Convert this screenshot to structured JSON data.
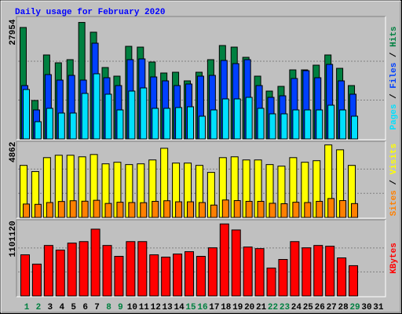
{
  "title": "Daily usage for February 2020",
  "categories": [
    "1",
    "2",
    "3",
    "4",
    "5",
    "6",
    "7",
    "8",
    "9",
    "10",
    "11",
    "12",
    "13",
    "14",
    "15",
    "16",
    "17",
    "18",
    "19",
    "20",
    "21",
    "22",
    "23",
    "24",
    "25",
    "26",
    "27",
    "28",
    "29",
    "30",
    "31"
  ],
  "category_colors": [
    "#008040",
    "#008040",
    "#000000",
    "#000000",
    "#000000",
    "#000000",
    "#000000",
    "#008040",
    "#008040",
    "#000000",
    "#000000",
    "#000000",
    "#000000",
    "#000000",
    "#008040",
    "#008040",
    "#000000",
    "#000000",
    "#000000",
    "#000000",
    "#000000",
    "#008040",
    "#008040",
    "#000000",
    "#000000",
    "#000000",
    "#000000",
    "#000000",
    "#008040",
    "#000000",
    "#000000"
  ],
  "chart_data": [
    {
      "type": "bar",
      "ylim": [
        0,
        29000
      ],
      "yticks": [
        27954
      ],
      "series": [
        {
          "name": "Hits",
          "color": "#008040",
          "values": [
            26740,
            9227,
            20150,
            18265,
            19020,
            27954,
            25610,
            17135,
            15065,
            22220,
            22030,
            18455,
            15820,
            16005,
            13935,
            16005,
            19020,
            22410,
            22030,
            19585,
            15065,
            11485,
            12615,
            16570,
            16570,
            17700,
            20150,
            16945,
            12805,
            null,
            null
          ]
        },
        {
          "name": "Files",
          "color": "#0040ff",
          "values": [
            12805,
            6965,
            15440,
            14120,
            15250,
            14120,
            22970,
            14685,
            12805,
            19020,
            19205,
            14875,
            13935,
            12805,
            13180,
            15065,
            15250,
            18830,
            18075,
            19020,
            12805,
            9980,
            10355,
            14500,
            16380,
            14685,
            17890,
            13935,
            10735,
            null,
            null
          ]
        },
        {
          "name": "Pages",
          "color": "#00e0ff",
          "values": [
            11860,
            4140,
            7345,
            6215,
            6215,
            10920,
            15630,
            10735,
            6965,
            11485,
            12240,
            7345,
            7345,
            7530,
            7720,
            5460,
            6965,
            9605,
            9605,
            9980,
            7345,
            6025,
            6025,
            6965,
            6965,
            6965,
            8095,
            6965,
            5460,
            null,
            null
          ]
        }
      ]
    },
    {
      "type": "bar",
      "ylim": [
        0,
        5000
      ],
      "yticks": [
        4862
      ],
      "series": [
        {
          "name": "Visits",
          "color": "#ffff00",
          "values": [
            3490,
            3075,
            4010,
            4170,
            4170,
            4065,
            4220,
            3595,
            3700,
            3545,
            3595,
            3855,
            4637,
            3645,
            3645,
            3490,
            3020,
            4010,
            4065,
            3855,
            3855,
            3545,
            3440,
            4010,
            3700,
            3805,
            4862,
            4535,
            3490,
            null,
            null
          ]
        },
        {
          "name": "Sites",
          "color": "#ff8000",
          "values": [
            900,
            880,
            1000,
            1070,
            1120,
            1090,
            1150,
            940,
            1020,
            1000,
            990,
            1080,
            1120,
            1050,
            1050,
            1000,
            830,
            1170,
            1130,
            1080,
            1080,
            950,
            920,
            1020,
            1000,
            1080,
            1270,
            1130,
            930,
            null,
            null
          ]
        }
      ]
    },
    {
      "type": "bar",
      "ylim": [
        0,
        1140000
      ],
      "yticks": [
        1101120
      ],
      "series": [
        {
          "name": "KBytes",
          "color": "#ff0000",
          "values": [
            629000,
            487000,
            772000,
            701000,
            808000,
            831000,
            1021000,
            772000,
            606000,
            831000,
            831000,
            629000,
            594000,
            641000,
            677000,
            606000,
            736000,
            1101120,
            1009000,
            748000,
            724000,
            427000,
            558000,
            831000,
            736000,
            772000,
            760000,
            582000,
            463000,
            null,
            null
          ]
        }
      ]
    }
  ]
}
